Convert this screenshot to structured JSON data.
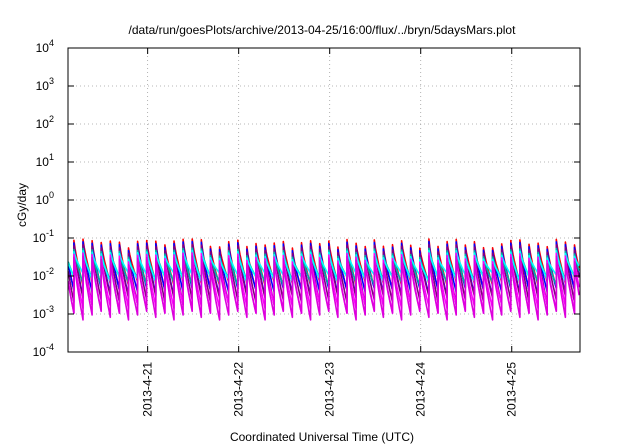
{
  "chart_data": {
    "type": "line",
    "title": "/data/run/goesPlots/archive/2013-04-25/16:00/flux/../bryn/5daysMars.plot",
    "xlabel": "Coordinated Universal Time (UTC)",
    "ylabel": "cGy/day",
    "y_scale": "log",
    "ylim": [
      0.0001,
      10000
    ],
    "xlim": [
      "2013-04-20 03:00",
      "2013-04-25 18:00"
    ],
    "grid": true,
    "y_ticks": [
      {
        "base": "10",
        "exp": "-4"
      },
      {
        "base": "10",
        "exp": "-3"
      },
      {
        "base": "10",
        "exp": "-2"
      },
      {
        "base": "10",
        "exp": "-1"
      },
      {
        "base": "10",
        "exp": "0"
      },
      {
        "base": "10",
        "exp": "1"
      },
      {
        "base": "10",
        "exp": "2"
      },
      {
        "base": "10",
        "exp": "3"
      },
      {
        "base": "10",
        "exp": "4"
      }
    ],
    "x_ticks": [
      {
        "label": "2013-4-21",
        "date": "2013-04-21"
      },
      {
        "label": "2013-4-22",
        "date": "2013-04-22"
      },
      {
        "label": "2013-4-23",
        "date": "2013-04-23"
      },
      {
        "label": "2013-4-24",
        "date": "2013-04-24"
      },
      {
        "label": "2013-4-25",
        "date": "2013-04-25"
      }
    ],
    "sawtooth_period_hours": 2.4,
    "series": [
      {
        "color": "#ff0000",
        "peak": 0.07,
        "trough": 0.006
      },
      {
        "color": "#0000ff",
        "peak": 0.06,
        "trough": 0.004
      },
      {
        "color": "#800080",
        "peak": 0.05,
        "trough": 0.0025
      },
      {
        "color": "#00b0a0",
        "peak": 0.04,
        "trough": 0.008
      },
      {
        "color": "#00ffff",
        "peak": 0.035,
        "trough": 0.01
      },
      {
        "color": "#ff00ff",
        "peak": 0.03,
        "trough": 0.0015
      },
      {
        "color": "#dd00dd",
        "peak": 0.025,
        "trough": 0.001
      }
    ],
    "colors": {
      "frame": "#000000",
      "grid": "#a0a0a0",
      "background": "#ffffff"
    }
  }
}
